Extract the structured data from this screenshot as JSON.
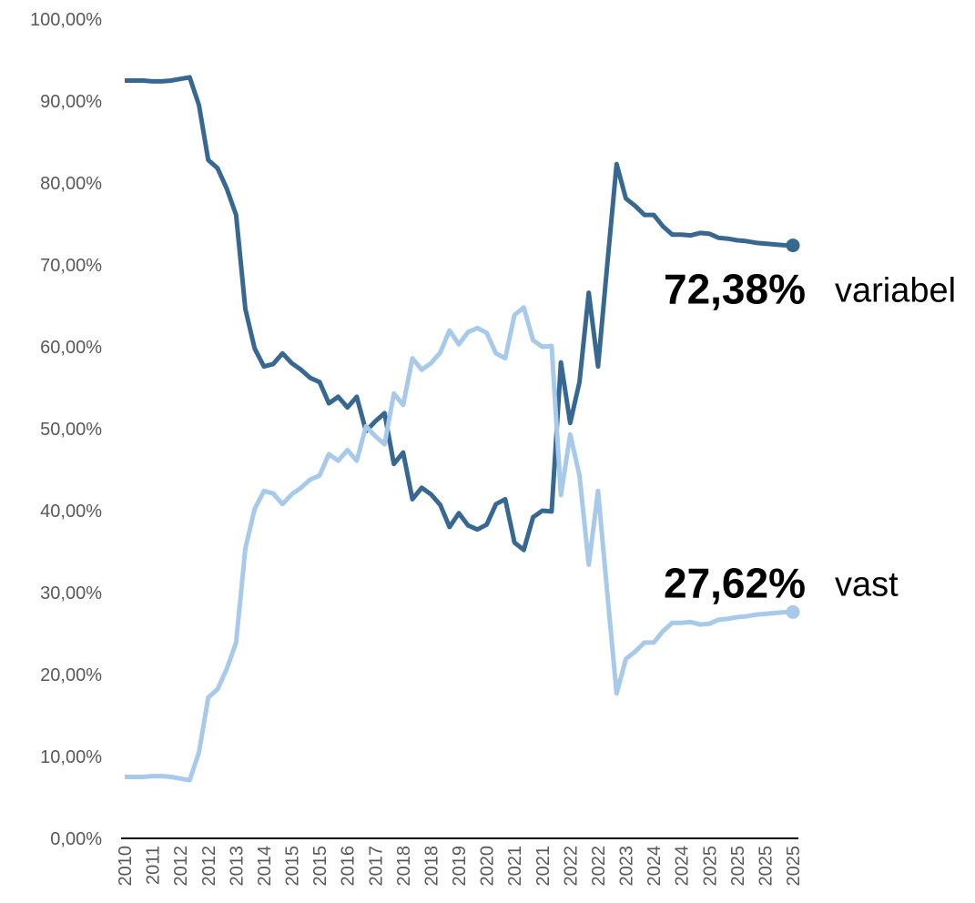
{
  "chart_data": {
    "type": "line",
    "categories": [
      "2010",
      null,
      null,
      "2011",
      null,
      null,
      "2012",
      null,
      null,
      "2012",
      null,
      null,
      "2013",
      null,
      null,
      "2014",
      null,
      null,
      "2015",
      null,
      null,
      "2015",
      null,
      null,
      "2016",
      null,
      null,
      "2017",
      null,
      null,
      "2018",
      null,
      null,
      "2018",
      null,
      null,
      "2019",
      null,
      null,
      "2020",
      null,
      null,
      "2021",
      null,
      null,
      "2021",
      null,
      null,
      "2022",
      null,
      null,
      "2022",
      null,
      null,
      "2023",
      null,
      null,
      "2024",
      null,
      null,
      "2024",
      null,
      null,
      "2025",
      null,
      null,
      "2025",
      null,
      null,
      "2025",
      null,
      null,
      "2025"
    ],
    "series": [
      {
        "name": "variabel",
        "color": "#376891",
        "values": [
          92.5,
          92.5,
          92.5,
          92.4,
          92.4,
          92.5,
          92.7,
          92.9,
          89.5,
          82.8,
          81.8,
          79.3,
          76.1,
          64.6,
          59.8,
          57.6,
          57.9,
          59.2,
          58.0,
          57.2,
          56.2,
          55.7,
          53.1,
          53.9,
          52.6,
          53.9,
          49.7,
          50.9,
          51.9,
          45.7,
          47.1,
          41.4,
          42.8,
          42.0,
          40.7,
          38.0,
          39.7,
          38.2,
          37.7,
          38.3,
          40.8,
          41.4,
          36.1,
          35.2,
          39.2,
          40.0,
          39.9,
          58.1,
          50.7,
          55.7,
          66.6,
          57.6,
          70.1,
          82.3,
          78.1,
          77.2,
          76.1,
          76.1,
          74.7,
          73.7,
          73.7,
          73.6,
          73.9,
          73.8,
          73.3,
          73.2,
          73.0,
          72.9,
          72.7,
          72.6,
          72.5,
          72.4,
          72.38
        ],
        "value_labels": [
          null,
          null,
          null,
          null,
          null,
          null,
          null,
          null,
          null,
          null,
          null,
          null,
          null,
          null,
          null,
          null,
          null,
          null,
          null,
          null,
          null,
          null,
          null,
          null,
          null,
          null,
          null,
          null,
          null,
          null,
          null,
          null,
          null,
          null,
          null,
          null,
          null,
          null,
          null,
          null,
          null,
          null,
          null,
          null,
          null,
          null,
          null,
          null,
          null,
          null,
          null,
          null,
          null,
          null,
          null,
          null,
          null,
          null,
          null,
          null,
          null,
          null,
          null,
          null,
          null,
          null,
          null,
          null,
          null,
          null,
          null,
          null,
          "72,38%"
        ]
      },
      {
        "name": "vast",
        "color": "#a7c9ea",
        "values": [
          7.5,
          7.5,
          7.5,
          7.6,
          7.6,
          7.5,
          7.3,
          7.1,
          10.5,
          17.2,
          18.2,
          20.7,
          23.9,
          35.4,
          40.2,
          42.4,
          42.1,
          40.8,
          42.0,
          42.8,
          43.8,
          44.3,
          46.9,
          46.1,
          47.4,
          46.1,
          50.3,
          49.1,
          48.1,
          54.3,
          52.9,
          58.6,
          57.2,
          58.0,
          59.3,
          62.0,
          60.3,
          61.8,
          62.3,
          61.7,
          59.2,
          58.6,
          63.9,
          64.8,
          60.8,
          60.0,
          60.1,
          41.9,
          49.3,
          44.3,
          33.4,
          42.4,
          29.9,
          17.7,
          21.9,
          22.8,
          23.9,
          23.9,
          25.3,
          26.3,
          26.3,
          26.4,
          26.1,
          26.2,
          26.7,
          26.8,
          27.0,
          27.1,
          27.3,
          27.4,
          27.5,
          27.6,
          27.62
        ],
        "value_labels": [
          null,
          null,
          null,
          null,
          null,
          null,
          null,
          null,
          null,
          null,
          null,
          null,
          null,
          null,
          null,
          null,
          null,
          null,
          null,
          null,
          null,
          null,
          null,
          null,
          null,
          null,
          null,
          null,
          null,
          null,
          null,
          null,
          null,
          null,
          null,
          null,
          null,
          null,
          null,
          null,
          null,
          null,
          null,
          null,
          null,
          null,
          null,
          null,
          null,
          null,
          null,
          null,
          null,
          null,
          null,
          null,
          null,
          null,
          null,
          null,
          null,
          null,
          null,
          null,
          null,
          null,
          null,
          null,
          null,
          null,
          null,
          null,
          "27,62%"
        ]
      }
    ],
    "ylim": [
      0,
      100
    ],
    "yticks": [
      {
        "value": 0,
        "label": "0,00%"
      },
      {
        "value": 10,
        "label": "10,00%"
      },
      {
        "value": 20,
        "label": "20,00%"
      },
      {
        "value": 30,
        "label": "30,00%"
      },
      {
        "value": 40,
        "label": "40,00%"
      },
      {
        "value": 50,
        "label": "50,00%"
      },
      {
        "value": 60,
        "label": "60,00%"
      },
      {
        "value": 70,
        "label": "70,00%"
      },
      {
        "value": 80,
        "label": "80,00%"
      },
      {
        "value": 90,
        "label": "90,00%"
      },
      {
        "value": 100,
        "label": "100,00%"
      }
    ],
    "grid": false
  }
}
